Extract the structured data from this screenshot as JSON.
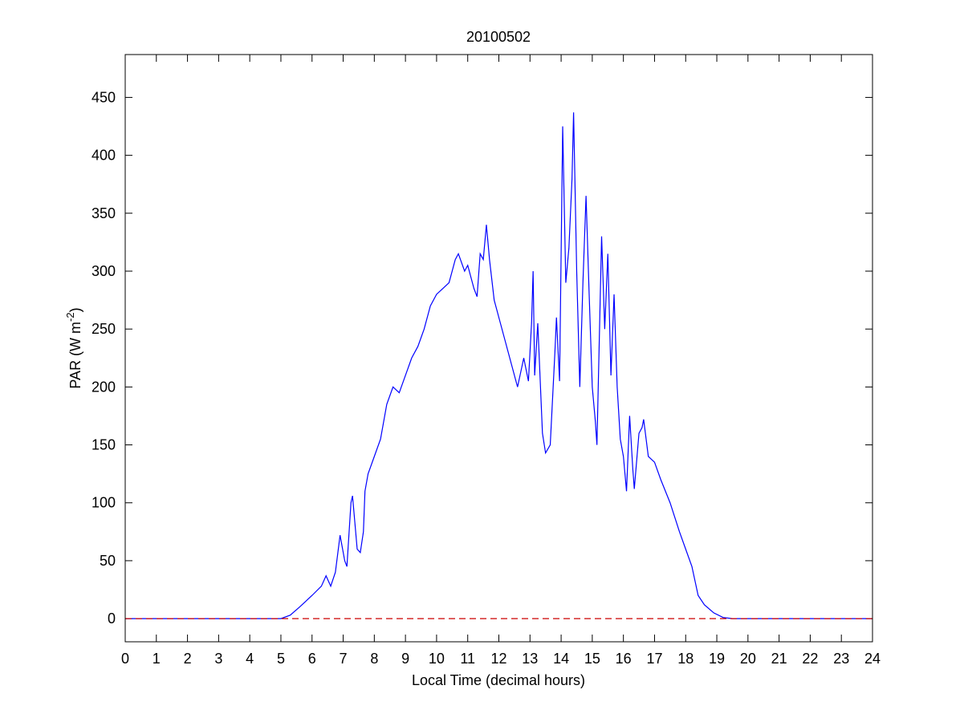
{
  "chart_data": {
    "type": "line",
    "title": "20100502",
    "xlabel": "Local Time (decimal hours)",
    "ylabel_parts": [
      "PAR (W m",
      "-2",
      ")"
    ],
    "xlim": [
      0,
      24
    ],
    "ylim": [
      -20,
      487
    ],
    "xticks": [
      0,
      1,
      2,
      3,
      4,
      5,
      6,
      7,
      8,
      9,
      10,
      11,
      12,
      13,
      14,
      15,
      16,
      17,
      18,
      19,
      20,
      21,
      22,
      23,
      24
    ],
    "yticks": [
      0,
      50,
      100,
      150,
      200,
      250,
      300,
      350,
      400,
      450
    ],
    "series": [
      {
        "color": "#0000ff",
        "dash": false,
        "x": [
          0,
          5,
          5.3,
          5.6,
          6,
          6.3,
          6.45,
          6.6,
          6.75,
          6.9,
          7.05,
          7.12,
          7.25,
          7.3,
          7.45,
          7.55,
          7.65,
          7.7,
          7.8,
          8,
          8.2,
          8.4,
          8.6,
          8.8,
          9,
          9.2,
          9.4,
          9.6,
          9.8,
          10,
          10.2,
          10.4,
          10.6,
          10.7,
          10.9,
          11,
          11.2,
          11.3,
          11.4,
          11.5,
          11.6,
          11.7,
          11.85,
          12,
          12.2,
          12.4,
          12.6,
          12.8,
          12.95,
          13.05,
          13.1,
          13.15,
          13.25,
          13.4,
          13.5,
          13.65,
          13.8,
          13.85,
          13.95,
          14.05,
          14.15,
          14.25,
          14.35,
          14.4,
          14.5,
          14.6,
          14.7,
          14.8,
          14.9,
          15,
          15.1,
          15.15,
          15.3,
          15.4,
          15.5,
          15.6,
          15.7,
          15.8,
          15.9,
          16,
          16.1,
          16.2,
          16.3,
          16.35,
          16.5,
          16.6,
          16.65,
          16.8,
          17,
          17.2,
          17.5,
          17.8,
          18,
          18.2,
          18.4,
          18.6,
          18.9,
          19.2,
          19.5,
          24
        ],
        "values": [
          0,
          0,
          3,
          10,
          20,
          28,
          37,
          28,
          40,
          72,
          50,
          45,
          100,
          106,
          60,
          57,
          75,
          110,
          125,
          140,
          155,
          185,
          200,
          195,
          210,
          225,
          235,
          250,
          270,
          280,
          285,
          290,
          310,
          315,
          300,
          305,
          285,
          278,
          315,
          310,
          340,
          310,
          275,
          260,
          240,
          220,
          200,
          225,
          205,
          255,
          300,
          210,
          255,
          160,
          143,
          150,
          230,
          260,
          205,
          425,
          290,
          320,
          380,
          437,
          300,
          200,
          290,
          365,
          280,
          200,
          170,
          150,
          330,
          250,
          315,
          210,
          280,
          200,
          155,
          140,
          110,
          175,
          130,
          112,
          160,
          165,
          172,
          140,
          135,
          120,
          100,
          75,
          60,
          45,
          20,
          12,
          5,
          1,
          0,
          0
        ]
      },
      {
        "color": "#cc0000",
        "dash": true,
        "x": [
          0,
          24
        ],
        "values": [
          0,
          0
        ]
      }
    ]
  }
}
